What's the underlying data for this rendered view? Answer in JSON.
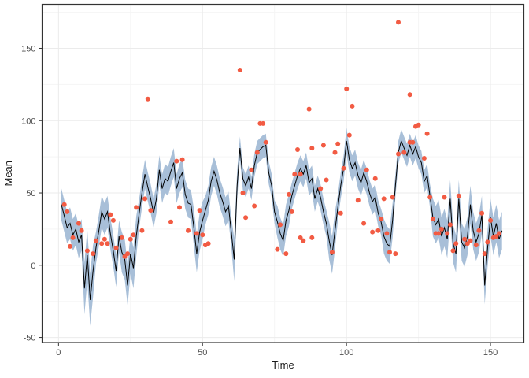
{
  "figure": {
    "xlabel": "Time",
    "ylabel": "Mean",
    "colors": {
      "background": "#FFFFFF",
      "panel_background": "#FFFFFF",
      "panel_border": "#333333",
      "grid_major": "#EBEBEB",
      "grid_minor": "#F5F5F5",
      "tick_mark": "#333333",
      "tick_text": "#4D4D4D",
      "axis_title": "#1A1A1A",
      "ribbon": "#A8BFD8",
      "line": "#000000",
      "point": "#F25B43"
    }
  },
  "chart_data": {
    "type": "line",
    "title": "",
    "xlabel": "Time",
    "ylabel": "Mean",
    "grid": true,
    "legend": "none",
    "xlim": [
      -5.7,
      161.6
    ],
    "ylim": [
      -53.5,
      180.5
    ],
    "x_ticks": [
      0,
      50,
      100,
      150
    ],
    "x_minor_ticks": [
      25,
      75,
      125
    ],
    "y_ticks": [
      -50,
      0,
      50,
      100,
      150
    ],
    "y_minor_ticks": [
      -25,
      25,
      75,
      125,
      175
    ],
    "x_tick_labels": [
      "0",
      "50",
      "100",
      "150"
    ],
    "y_tick_labels": [
      "-50",
      "0",
      "50",
      "100",
      "150"
    ],
    "series": [
      {
        "name": "mean-line",
        "type": "line",
        "t_start": 1,
        "values": [
          42,
          34,
          26,
          29,
          21,
          25,
          16,
          21,
          -16,
          7,
          -24,
          -4,
          12,
          24,
          37,
          32,
          37,
          22,
          10,
          -4,
          20,
          9,
          4,
          -14,
          8,
          -2,
          20,
          36,
          50,
          63,
          54,
          46,
          36,
          46,
          66,
          53,
          60,
          58,
          65,
          71,
          53,
          60,
          64,
          49,
          43,
          42,
          26,
          8,
          23,
          31,
          38,
          45,
          58,
          65,
          59,
          50,
          44,
          37,
          41,
          23,
          4,
          55,
          81,
          60,
          55,
          61,
          53,
          69,
          78,
          80,
          82,
          83,
          64,
          55,
          37,
          30,
          22,
          17,
          31,
          38,
          48,
          55,
          62,
          67,
          63,
          69,
          57,
          60,
          46,
          53,
          47,
          37,
          29,
          17,
          7,
          24,
          40,
          55,
          67,
          86,
          73,
          67,
          71,
          62,
          57,
          64,
          58,
          50,
          44,
          47,
          36,
          30,
          20,
          15,
          13,
          31,
          55,
          78,
          86,
          81,
          76,
          83,
          77,
          82,
          75,
          71,
          58,
          62,
          48,
          33,
          28,
          32,
          20,
          26,
          18,
          46,
          15,
          8,
          46,
          16,
          12,
          20,
          42,
          24,
          16,
          22,
          35,
          -14,
          12,
          33,
          20,
          29,
          18,
          24
        ]
      },
      {
        "name": "confidence-ribbon",
        "type": "ribbon",
        "t_start": 1,
        "lower": [
          31,
          23,
          15,
          18,
          10,
          14,
          5,
          10,
          -34,
          -11,
          -42,
          -22,
          1,
          13,
          26,
          21,
          26,
          11,
          -1,
          -15,
          9,
          -5,
          -10,
          -28,
          -6,
          -16,
          6,
          26,
          40,
          53,
          44,
          36,
          26,
          36,
          56,
          43,
          50,
          48,
          55,
          61,
          43,
          50,
          54,
          39,
          33,
          32,
          13,
          -5,
          10,
          18,
          28,
          35,
          48,
          55,
          49,
          40,
          34,
          27,
          31,
          13,
          -11,
          45,
          73,
          52,
          47,
          53,
          45,
          61,
          70,
          72,
          74,
          75,
          56,
          47,
          29,
          19,
          11,
          6,
          20,
          27,
          39,
          46,
          53,
          58,
          54,
          60,
          48,
          51,
          37,
          44,
          38,
          28,
          20,
          4,
          -6,
          11,
          31,
          46,
          58,
          77,
          64,
          58,
          62,
          53,
          48,
          55,
          49,
          41,
          35,
          38,
          27,
          21,
          8,
          3,
          1,
          19,
          47,
          70,
          78,
          73,
          68,
          75,
          69,
          74,
          67,
          63,
          50,
          54,
          40,
          20,
          15,
          19,
          7,
          13,
          5,
          33,
          2,
          -5,
          33,
          3,
          -1,
          7,
          29,
          11,
          3,
          9,
          22,
          -27,
          -1,
          20,
          7,
          16,
          5,
          11
        ],
        "upper": [
          53,
          45,
          37,
          40,
          32,
          36,
          27,
          32,
          2,
          25,
          -6,
          14,
          23,
          35,
          48,
          43,
          48,
          33,
          21,
          7,
          31,
          23,
          18,
          0,
          22,
          12,
          34,
          46,
          60,
          73,
          64,
          56,
          46,
          56,
          76,
          63,
          70,
          68,
          75,
          81,
          63,
          70,
          74,
          59,
          53,
          52,
          39,
          21,
          36,
          44,
          48,
          55,
          68,
          75,
          69,
          60,
          54,
          47,
          51,
          33,
          19,
          65,
          89,
          68,
          63,
          69,
          61,
          77,
          86,
          88,
          90,
          91,
          72,
          63,
          45,
          41,
          33,
          28,
          42,
          49,
          57,
          64,
          71,
          76,
          72,
          78,
          66,
          69,
          55,
          62,
          56,
          46,
          38,
          30,
          20,
          37,
          49,
          64,
          76,
          95,
          82,
          76,
          80,
          71,
          66,
          73,
          67,
          59,
          53,
          56,
          45,
          39,
          32,
          27,
          25,
          43,
          63,
          86,
          94,
          89,
          84,
          91,
          85,
          90,
          83,
          79,
          66,
          70,
          56,
          46,
          41,
          45,
          33,
          39,
          31,
          59,
          28,
          21,
          59,
          29,
          25,
          33,
          55,
          37,
          29,
          35,
          48,
          -1,
          25,
          46,
          33,
          42,
          31,
          37
        ]
      },
      {
        "name": "observations",
        "type": "scatter",
        "points": [
          [
            2,
            42
          ],
          [
            3,
            37
          ],
          [
            4,
            13
          ],
          [
            5,
            19
          ],
          [
            7,
            29
          ],
          [
            8,
            24
          ],
          [
            10,
            10
          ],
          [
            12,
            8
          ],
          [
            13,
            17
          ],
          [
            15,
            15
          ],
          [
            16,
            18
          ],
          [
            17,
            15
          ],
          [
            18,
            35
          ],
          [
            19,
            31
          ],
          [
            20,
            12
          ],
          [
            22,
            19
          ],
          [
            23,
            6
          ],
          [
            24,
            8
          ],
          [
            25,
            18
          ],
          [
            26,
            21
          ],
          [
            27,
            40
          ],
          [
            29,
            24
          ],
          [
            30,
            46
          ],
          [
            31,
            115
          ],
          [
            32,
            38
          ],
          [
            39,
            30
          ],
          [
            41,
            72
          ],
          [
            42,
            40
          ],
          [
            43,
            73
          ],
          [
            45,
            24
          ],
          [
            48,
            22
          ],
          [
            49,
            38
          ],
          [
            50,
            21
          ],
          [
            51,
            14
          ],
          [
            52,
            15
          ],
          [
            63,
            135
          ],
          [
            64,
            50
          ],
          [
            65,
            33
          ],
          [
            67,
            66
          ],
          [
            68,
            41
          ],
          [
            69,
            78
          ],
          [
            70,
            98
          ],
          [
            71,
            98
          ],
          [
            72,
            85
          ],
          [
            76,
            11
          ],
          [
            77,
            28
          ],
          [
            79,
            8
          ],
          [
            80,
            49
          ],
          [
            81,
            37
          ],
          [
            82,
            63
          ],
          [
            83,
            80
          ],
          [
            84,
            63
          ],
          [
            84,
            19
          ],
          [
            85,
            17
          ],
          [
            87,
            108
          ],
          [
            88,
            81
          ],
          [
            88,
            19
          ],
          [
            91,
            53
          ],
          [
            92,
            83
          ],
          [
            93,
            59
          ],
          [
            95,
            9
          ],
          [
            96,
            78
          ],
          [
            97,
            84
          ],
          [
            98,
            36
          ],
          [
            99,
            67
          ],
          [
            100,
            122
          ],
          [
            101,
            90
          ],
          [
            102,
            110
          ],
          [
            104,
            45
          ],
          [
            106,
            29
          ],
          [
            107,
            66
          ],
          [
            109,
            23
          ],
          [
            110,
            60
          ],
          [
            111,
            24
          ],
          [
            112,
            32
          ],
          [
            113,
            46
          ],
          [
            114,
            22
          ],
          [
            115,
            9
          ],
          [
            116,
            47
          ],
          [
            117,
            8
          ],
          [
            118,
            168
          ],
          [
            118,
            77
          ],
          [
            120,
            78
          ],
          [
            122,
            118
          ],
          [
            122,
            85
          ],
          [
            123,
            85
          ],
          [
            124,
            96
          ],
          [
            125,
            97
          ],
          [
            127,
            74
          ],
          [
            128,
            91
          ],
          [
            129,
            47
          ],
          [
            130,
            32
          ],
          [
            131,
            22
          ],
          [
            132,
            22
          ],
          [
            133,
            25
          ],
          [
            134,
            47
          ],
          [
            135,
            22
          ],
          [
            136,
            28
          ],
          [
            137,
            10
          ],
          [
            138,
            15
          ],
          [
            139,
            48
          ],
          [
            141,
            18
          ],
          [
            142,
            15
          ],
          [
            143,
            17
          ],
          [
            145,
            14
          ],
          [
            146,
            24
          ],
          [
            147,
            36
          ],
          [
            148,
            8
          ],
          [
            149,
            16
          ],
          [
            150,
            31
          ],
          [
            151,
            19
          ],
          [
            152,
            20
          ],
          [
            153,
            22
          ]
        ]
      }
    ]
  }
}
